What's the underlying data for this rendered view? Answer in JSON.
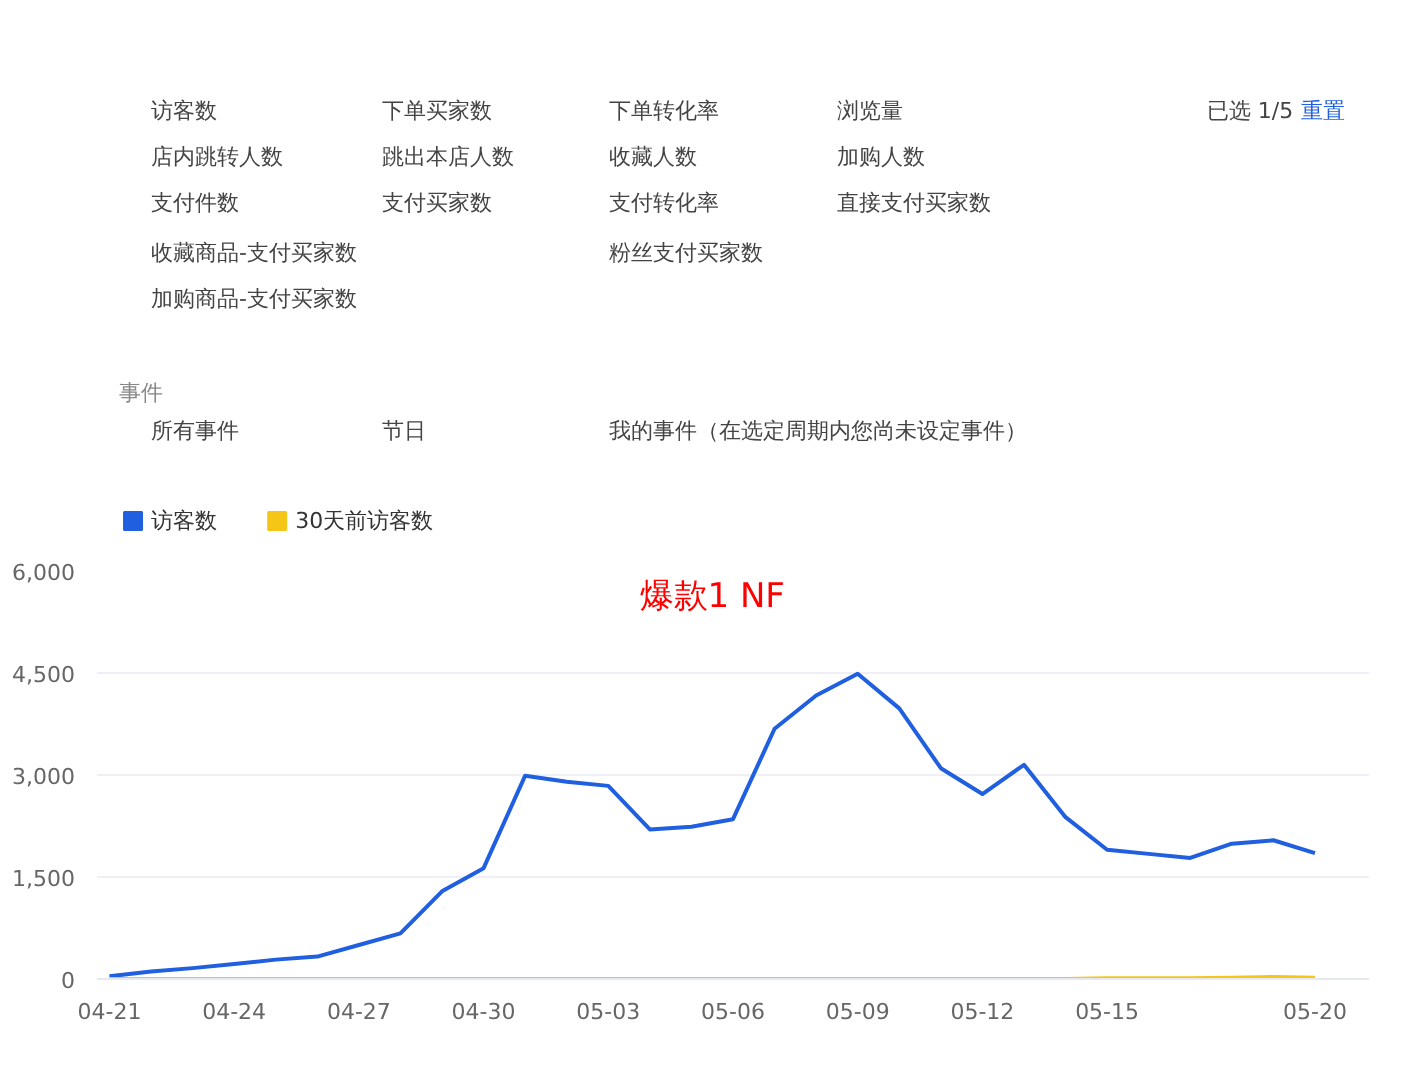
{
  "chart_data": {
    "type": "line",
    "title": "爆款1 NF",
    "categories": [
      "04-21",
      null,
      null,
      "04-24",
      null,
      null,
      "04-27",
      null,
      null,
      "04-30",
      null,
      null,
      "05-03",
      null,
      null,
      "05-06",
      null,
      null,
      "05-09",
      null,
      null,
      "05-12",
      null,
      null,
      "05-15",
      null,
      null,
      null,
      null,
      "05-20"
    ],
    "series": [
      {
        "name": "访客数",
        "color": "#1f5fe0",
        "values": [
          40,
          110,
          160,
          220,
          285,
          330,
          500,
          670,
          1290,
          1630,
          2990,
          2900,
          2840,
          2200,
          2240,
          2350,
          3680,
          4170,
          4490,
          3980,
          3100,
          2720,
          3150,
          2380,
          1900,
          1840,
          1780,
          1990,
          2040,
          1850
        ]
      },
      {
        "name": "30天前访客数",
        "color": "#f5c518",
        "values": [
          0,
          0,
          0,
          0,
          0,
          0,
          0,
          0,
          0,
          0,
          0,
          0,
          0,
          0,
          0,
          0,
          0,
          0,
          0,
          0,
          0,
          0,
          0,
          0,
          10,
          10,
          10,
          20,
          30,
          20
        ]
      }
    ],
    "ylim": [
      0,
      6000
    ],
    "yticks": [
      0,
      {
        "value": 1500,
        "label": "1,500"
      },
      {
        "value": 3000,
        "label": "3,000"
      },
      {
        "value": 4500,
        "label": "4,500"
      },
      {
        "value": 6000,
        "label": "6,000"
      }
    ],
    "grid": "y",
    "legend": "top left",
    "marker": "none",
    "line_style": "solid",
    "annotations": [
      "访客数",
      "下单买家数",
      "下单转化率",
      "浏览量",
      "已选 1/5",
      "重置",
      "店内跳转人数",
      "跳出本店人数",
      "收藏人数",
      "加购人数",
      "支付件数",
      "支付买家数",
      "支付转化率",
      "直接支付买家数",
      "收藏商品-支付买家数",
      "粉丝支付买家数",
      "加购商品-支付买家数",
      "事件",
      "所有事件",
      "节日",
      "我的事件（在选定周期内您尚未设定事件）"
    ]
  }
}
